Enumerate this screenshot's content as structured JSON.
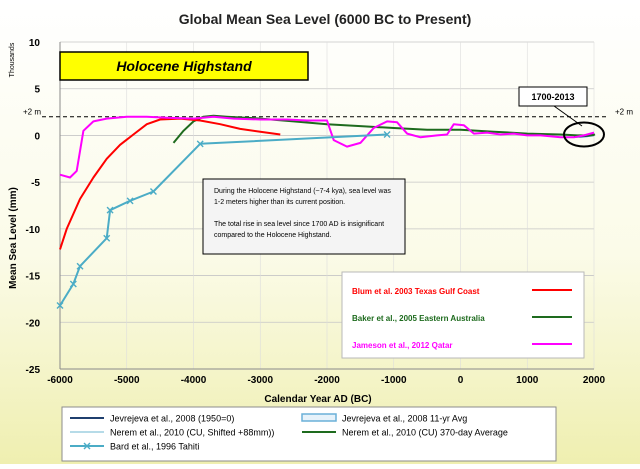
{
  "chart_data": {
    "type": "line",
    "title": "Global Mean Sea Level (6000 BC to Present)",
    "xlabel": "Calendar Year AD (BC)",
    "ylabel": "Mean Sea Level (mm)",
    "y_unit_note": "Thousands",
    "xlim": [
      -6000,
      2000
    ],
    "ylim": [
      -25,
      10
    ],
    "x_ticks": [
      -6000,
      -5000,
      -4000,
      -3000,
      -2000,
      -1000,
      0,
      1000,
      2000
    ],
    "x_tick_labels": [
      "-6000",
      "-5000",
      "-4000",
      "-3000",
      "-2000",
      "-1000",
      "0",
      "1000",
      "2000"
    ],
    "y_ticks": [
      -25,
      -20,
      -15,
      -10,
      -5,
      0,
      5,
      10
    ],
    "y_tick_labels": [
      "-25",
      "-20",
      "-15",
      "-10",
      "-5",
      "0",
      "5",
      "10"
    ],
    "grid": true,
    "reference_line": {
      "y": 2,
      "left_label": "+2 m",
      "right_label": "+2 m"
    },
    "banner_label": "Holocene Highstand",
    "callout_label": "1700-2013",
    "callout_center": {
      "x": 1850,
      "y": 0.1
    },
    "note_paragraphs": [
      "During the Holocene Highstand (~7-4 kya), sea level was 1-2 meters higher than its current position.",
      "The total rise in sea level since 1700 AD is insignificant compared to the Holocene Highstand."
    ],
    "series": [
      {
        "name": "Blum et al. 2003 Texas Gulf Coast",
        "color": "#ff0000",
        "legend": "inner",
        "points": [
          [
            -6000,
            -12.2
          ],
          [
            -5900,
            -10
          ],
          [
            -5700,
            -6.8
          ],
          [
            -5500,
            -4.5
          ],
          [
            -5300,
            -2.5
          ],
          [
            -5100,
            -1
          ],
          [
            -4900,
            0.1
          ],
          [
            -4700,
            1.2
          ],
          [
            -4500,
            1.7
          ],
          [
            -4200,
            1.8
          ],
          [
            -3900,
            1.6
          ],
          [
            -3600,
            1.2
          ],
          [
            -3300,
            0.7
          ],
          [
            -3000,
            0.4
          ],
          [
            -2700,
            0.1
          ]
        ]
      },
      {
        "name": "Baker et al., 2005 Eastern Australia",
        "color": "#1e6b1e",
        "legend": "inner",
        "points": [
          [
            -4300,
            -0.8
          ],
          [
            -4150,
            0.5
          ],
          [
            -4000,
            1.5
          ],
          [
            -3850,
            2.0
          ],
          [
            -3700,
            2.1
          ],
          [
            -3500,
            2.0
          ],
          [
            -3000,
            1.8
          ],
          [
            -2500,
            1.5
          ],
          [
            -2000,
            1.2
          ],
          [
            -1500,
            1.0
          ],
          [
            -1000,
            0.8
          ],
          [
            -500,
            0.6
          ],
          [
            0,
            0.6
          ],
          [
            500,
            0.4
          ],
          [
            1000,
            0.2
          ],
          [
            1500,
            0.1
          ],
          [
            1750,
            0.0
          ],
          [
            1900,
            0.0
          ],
          [
            2000,
            0.05
          ]
        ]
      },
      {
        "name": "Jameson et al., 2012 Qatar",
        "color": "#ff00ff",
        "legend": "inner",
        "points": [
          [
            -6000,
            -4.2
          ],
          [
            -5850,
            -4.5
          ],
          [
            -5750,
            -3.8
          ],
          [
            -5650,
            0.5
          ],
          [
            -5500,
            1.5
          ],
          [
            -5300,
            1.8
          ],
          [
            -5000,
            2.0
          ],
          [
            -4700,
            2.0
          ],
          [
            -4400,
            1.9
          ],
          [
            -4000,
            1.8
          ],
          [
            -3700,
            2.0
          ],
          [
            -3400,
            1.8
          ],
          [
            -3000,
            1.7
          ],
          [
            -2600,
            1.7
          ],
          [
            -2300,
            1.6
          ],
          [
            -2000,
            1.6
          ],
          [
            -1900,
            -0.5
          ],
          [
            -1700,
            -1.2
          ],
          [
            -1500,
            -0.8
          ],
          [
            -1300,
            0.8
          ],
          [
            -1100,
            1.5
          ],
          [
            -950,
            1.4
          ],
          [
            -800,
            0.2
          ],
          [
            -600,
            -0.2
          ],
          [
            -350,
            0.0
          ],
          [
            -200,
            0.1
          ],
          [
            -100,
            1.2
          ],
          [
            50,
            1.1
          ],
          [
            200,
            0.2
          ],
          [
            400,
            0.3
          ],
          [
            600,
            0.1
          ],
          [
            800,
            0.2
          ],
          [
            1000,
            0.0
          ],
          [
            1200,
            0.0
          ],
          [
            1500,
            -0.2
          ],
          [
            1700,
            -0.2
          ],
          [
            1850,
            0.0
          ],
          [
            2000,
            0.3
          ]
        ]
      },
      {
        "name": "Jevrejeva et al., 2008 (1950=0)",
        "color": "#1f3f6e",
        "legend": "bottom",
        "points": [
          [
            1700,
            -0.15
          ],
          [
            1800,
            -0.1
          ],
          [
            1900,
            -0.05
          ],
          [
            1950,
            0.0
          ],
          [
            2000,
            0.05
          ]
        ]
      },
      {
        "name": "Jevrejeva et al., 2008 11-yr Avg",
        "color": "#6ab0d8",
        "legend": "bottom",
        "points": [
          [
            1700,
            -0.1
          ],
          [
            1800,
            -0.08
          ],
          [
            1900,
            -0.03
          ],
          [
            2000,
            0.08
          ]
        ]
      },
      {
        "name": "Nerem et al., 2010 (CU, Shifted +88mm))",
        "color": "#b6dbe8",
        "legend": "bottom",
        "points": [
          [
            1993,
            0.05
          ],
          [
            2013,
            0.15
          ]
        ]
      },
      {
        "name": "Nerem et al., 2010 (CU) 370-day Average",
        "color": "#1e6b1e",
        "legend": "bottom",
        "points": [
          [
            1993,
            0.05
          ],
          [
            2013,
            0.12
          ]
        ]
      },
      {
        "name": "Bard et al., 1996 Tahiti",
        "color": "#4bacc6",
        "legend": "bottom",
        "points": [
          [
            -6000,
            -18.2
          ],
          [
            -5800,
            -15.9
          ],
          [
            -5700,
            -14
          ],
          [
            -5300,
            -11
          ],
          [
            -5250,
            -8
          ],
          [
            -4950,
            -7
          ],
          [
            -4600,
            -6
          ],
          [
            -3900,
            -0.9
          ],
          [
            -1100,
            0.1
          ]
        ]
      }
    ]
  }
}
